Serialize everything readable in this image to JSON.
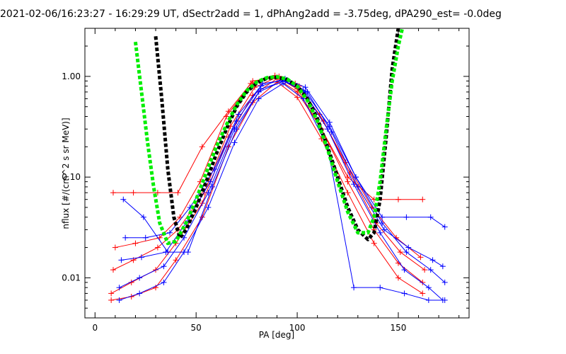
{
  "chart_data": {
    "type": "line",
    "title": "2021-02-06/16:23:27 - 16:29:29 UT, dSectr2add = 1, dPhAng2add = -3.75deg, dPA290_est=  -0.0deg",
    "xlabel": "PA [deg]",
    "ylabel": "nflux [#/(cm^2 s sr MeV)]",
    "xlim": [
      -5,
      185
    ],
    "ylim": [
      0.004,
      3.0
    ],
    "yscale": "log",
    "grid": false,
    "x_ticks": [
      0,
      50,
      100,
      150
    ],
    "x_tick_labels": [
      "0",
      "50",
      "100",
      "150"
    ],
    "y_ticks": [
      0.01,
      0.1,
      1.0
    ],
    "y_tick_labels": [
      "0.01",
      "0.10",
      "1.00"
    ],
    "colors": {
      "series_red": "#ff0000",
      "series_blue": "#0000ff",
      "fit_black": "#000000",
      "fit_green": "#00ee00"
    },
    "series": [
      {
        "color": "#ff0000",
        "style": "line+plus",
        "traces": [
          {
            "x": [
              8,
              18,
              30,
              40,
              53,
              66,
              78,
              90,
              100,
              112,
              125,
              138,
              150,
              162
            ],
            "y": [
              0.007,
              0.009,
              0.012,
              0.022,
              0.055,
              0.25,
              0.65,
              0.95,
              0.7,
              0.3,
              0.09,
              0.03,
              0.014,
              0.009
            ]
          },
          {
            "x": [
              9,
              19,
              31,
              41,
              54,
              67,
              79,
              91,
              101,
              113,
              126,
              139,
              151,
              163
            ],
            "y": [
              0.012,
              0.015,
              0.02,
              0.03,
              0.07,
              0.32,
              0.78,
              1.0,
              0.8,
              0.36,
              0.11,
              0.035,
              0.018,
              0.012
            ]
          },
          {
            "x": [
              10,
              20,
              32,
              42,
              52,
              65,
              77,
              89,
              99,
              111,
              124,
              137,
              149,
              161
            ],
            "y": [
              0.02,
              0.022,
              0.025,
              0.04,
              0.09,
              0.4,
              0.85,
              1.02,
              0.85,
              0.42,
              0.14,
              0.05,
              0.025,
              0.016
            ]
          },
          {
            "x": [
              8,
              18,
              30,
              40,
              53,
              66,
              78,
              90,
              100,
              112,
              125,
              138,
              150,
              162
            ],
            "y": [
              0.006,
              0.0065,
              0.008,
              0.015,
              0.04,
              0.2,
              0.55,
              0.88,
              0.62,
              0.24,
              0.07,
              0.022,
              0.01,
              0.007
            ]
          },
          {
            "x": [
              9,
              19,
              31,
              41,
              53,
              66,
              78,
              90,
              100,
              112,
              125,
              138,
              150,
              162
            ],
            "y": [
              0.07,
              0.07,
              0.07,
              0.07,
              0.2,
              0.45,
              0.9,
              0.98,
              0.75,
              0.3,
              0.1,
              0.06,
              0.06,
              0.06
            ]
          }
        ]
      },
      {
        "color": "#0000ff",
        "style": "line+plus",
        "traces": [
          {
            "x": [
              12,
              22,
              34,
              44,
              56,
              69,
              81,
              93,
              103,
              115,
              128,
              141,
              153,
              165,
              172
            ],
            "y": [
              0.008,
              0.01,
              0.013,
              0.025,
              0.07,
              0.3,
              0.7,
              0.9,
              0.72,
              0.3,
              0.085,
              0.028,
              0.012,
              0.008,
              0.006
            ]
          },
          {
            "x": [
              13,
              23,
              35,
              45,
              57,
              70,
              82,
              94,
              104,
              116,
              129,
              142,
              154,
              166,
              173
            ],
            "y": [
              0.015,
              0.016,
              0.018,
              0.035,
              0.09,
              0.36,
              0.8,
              0.95,
              0.78,
              0.35,
              0.1,
              0.035,
              0.018,
              0.012,
              0.009
            ]
          },
          {
            "x": [
              15,
              25,
              37,
              47,
              59,
              71,
              83,
              95,
              105,
              117,
              130,
              143,
              155,
              167,
              172
            ],
            "y": [
              0.025,
              0.025,
              0.028,
              0.05,
              0.12,
              0.42,
              0.85,
              0.92,
              0.7,
              0.28,
              0.08,
              0.03,
              0.02,
              0.015,
              0.013
            ]
          },
          {
            "x": [
              12,
              22,
              34,
              44,
              56,
              69,
              81,
              93,
              103,
              115,
              128,
              141,
              153,
              165,
              173
            ],
            "y": [
              0.006,
              0.007,
              0.009,
              0.018,
              0.05,
              0.22,
              0.6,
              0.85,
              0.6,
              0.2,
              0.008,
              0.008,
              0.007,
              0.006,
              0.006
            ]
          },
          {
            "x": [
              14,
              24,
              36,
              46,
              58,
              70,
              82,
              94,
              104,
              116,
              129,
              142,
              154,
              166,
              173
            ],
            "y": [
              0.06,
              0.04,
              0.018,
              0.018,
              0.08,
              0.3,
              0.75,
              0.9,
              0.7,
              0.32,
              0.1,
              0.04,
              0.04,
              0.04,
              0.032
            ]
          }
        ]
      },
      {
        "name": "",
        "color": "#000000",
        "style": "dashed-fit",
        "x": [
          30,
          33,
          36,
          39,
          42,
          45,
          50,
          55,
          60,
          65,
          70,
          75,
          80,
          85,
          90,
          95,
          100,
          105,
          110,
          115,
          120,
          125,
          130,
          135,
          138,
          141,
          144,
          147,
          150
        ],
        "y": [
          2.5,
          0.6,
          0.12,
          0.04,
          0.025,
          0.03,
          0.05,
          0.09,
          0.17,
          0.3,
          0.5,
          0.7,
          0.86,
          0.96,
          0.98,
          0.93,
          0.8,
          0.6,
          0.38,
          0.2,
          0.1,
          0.05,
          0.03,
          0.024,
          0.028,
          0.06,
          0.25,
          1.2,
          3.0
        ]
      },
      {
        "name": "",
        "color": "#00ee00",
        "style": "dashed-fit",
        "x": [
          20,
          23,
          26,
          29,
          32,
          36,
          40,
          45,
          50,
          55,
          60,
          65,
          70,
          75,
          80,
          85,
          90,
          95,
          100,
          105,
          110,
          115,
          120,
          125,
          130,
          135,
          138,
          141,
          144,
          147,
          150,
          152
        ],
        "y": [
          2.2,
          0.7,
          0.22,
          0.08,
          0.035,
          0.022,
          0.023,
          0.035,
          0.06,
          0.11,
          0.2,
          0.33,
          0.52,
          0.72,
          0.88,
          0.97,
          0.99,
          0.94,
          0.8,
          0.58,
          0.36,
          0.19,
          0.09,
          0.045,
          0.028,
          0.028,
          0.04,
          0.09,
          0.3,
          0.9,
          2.0,
          3.0
        ]
      }
    ]
  }
}
